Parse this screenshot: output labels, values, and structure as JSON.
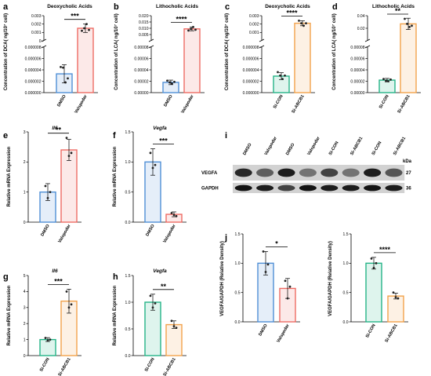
{
  "figure": {
    "background_color": "#ffffff"
  },
  "colors": {
    "dmso": "#4f8fd6",
    "valspodar": "#ee6b64",
    "si_con": "#25b487",
    "si_abcb1": "#f2a24b"
  },
  "chart_data": [
    {
      "id": "a",
      "type": "bar",
      "panel_label": "a",
      "title": "Deoxycholic Acids",
      "ylabel": "Concentration of DCA( ng/10⁷ cell)",
      "categories": [
        "DMSO",
        "Valspodar"
      ],
      "colors": [
        "#4f8fd6",
        "#ee6b64"
      ],
      "broken_axis": true,
      "lower_ylim": [
        0,
        8e-06
      ],
      "lower_ticks": [
        "0.000000",
        "0.000002",
        "0.000004",
        "0.000006",
        "0.000008"
      ],
      "upper_ylim": [
        0,
        0.003
      ],
      "upper_ticks": [
        "0",
        "0.001",
        "0.002",
        "0.003"
      ],
      "values": [
        3.3e-06,
        0.0015
      ],
      "errors": [
        1.6e-06,
        0.0005
      ],
      "points": [
        [
          4.5e-06,
          4.4e-06,
          1.8e-06,
          2.5e-06
        ],
        [
          0.0012,
          0.0015,
          0.002,
          0.0013
        ]
      ],
      "significance": "***"
    },
    {
      "id": "b",
      "type": "bar",
      "panel_label": "b",
      "title": "Lithocholic Acids",
      "ylabel": "Concentration of LCA( ng/10⁷ cell)",
      "categories": [
        "DMSO",
        "Valspodar"
      ],
      "colors": [
        "#4f8fd6",
        "#ee6b64"
      ],
      "broken_axis": true,
      "lower_ylim": [
        0,
        8e-05
      ],
      "lower_ticks": [
        "0.00000",
        "0.00002",
        "0.00004",
        "0.00006",
        "0.00008"
      ],
      "upper_ylim": [
        0,
        0.02
      ],
      "upper_ticks": [
        "0.005",
        "0.010",
        "0.015",
        "0.020"
      ],
      "values": [
        1.8e-05,
        0.0095
      ],
      "errors": [
        4e-06,
        0.0015
      ],
      "points": [
        [
          2.1e-05,
          1.8e-05,
          1.6e-05,
          1.9e-05
        ],
        [
          0.0082,
          0.0095,
          0.011,
          0.0088
        ]
      ],
      "significance": "****"
    },
    {
      "id": "c",
      "type": "bar",
      "panel_label": "c",
      "title": "Deoxycholic Acids",
      "ylabel": "Concentration of DCA( ng/10⁷ cell)",
      "categories": [
        "Si-CON",
        "Si-ABCB1"
      ],
      "colors": [
        "#25b487",
        "#f2a24b"
      ],
      "broken_axis": true,
      "lower_ylim": [
        0,
        8e-06
      ],
      "lower_ticks": [
        "0.000000",
        "0.000002",
        "0.000004",
        "0.000006",
        "0.000008"
      ],
      "upper_ylim": [
        0,
        0.003
      ],
      "upper_ticks": [
        "0.001",
        "0.002",
        "0.003"
      ],
      "values": [
        2.9e-06,
        0.0021
      ],
      "errors": [
        6e-07,
        0.0003
      ],
      "points": [
        [
          3.6e-06,
          3e-06,
          2.4e-06,
          3e-06
        ],
        [
          0.0024,
          0.0021,
          0.0018,
          0.0021
        ]
      ],
      "significance": "****"
    },
    {
      "id": "d",
      "type": "bar",
      "panel_label": "d",
      "title": "Lithocholic Acids",
      "ylabel": "Concentration of LCA( ng/10⁷ cell)",
      "categories": [
        "Si-CON",
        "Si-ABCB1"
      ],
      "colors": [
        "#25b487",
        "#f2a24b"
      ],
      "broken_axis": true,
      "lower_ylim": [
        0,
        8e-05
      ],
      "lower_ticks": [
        "0.00000",
        "0.00002",
        "0.00004",
        "0.00006",
        "0.00008"
      ],
      "upper_ylim": [
        0,
        0.04
      ],
      "upper_ticks": [
        "0.02",
        "0.04"
      ],
      "values": [
        2.2e-05,
        0.027
      ],
      "errors": [
        3e-06,
        0.009
      ],
      "points": [
        [
          2.4e-05,
          2.1e-05,
          2e-05,
          2.3e-05
        ],
        [
          0.035,
          0.027,
          0.022,
          0.024
        ]
      ],
      "significance": "**"
    },
    {
      "id": "e",
      "type": "bar",
      "panel_label": "e",
      "title": "Il6",
      "ylabel": "Relative mRNA Expression",
      "categories": [
        "DMSO",
        "Valspodar"
      ],
      "colors": [
        "#4f8fd6",
        "#ee6b64"
      ],
      "ylim": [
        0,
        3
      ],
      "yticks": [
        "0",
        "1",
        "2",
        "3"
      ],
      "values": [
        1.0,
        2.4
      ],
      "errors": [
        0.28,
        0.35
      ],
      "points": [
        [
          1.2,
          0.8,
          1.0
        ],
        [
          2.8,
          2.2,
          2.3
        ]
      ],
      "significance": "**"
    },
    {
      "id": "f",
      "type": "bar",
      "panel_label": "f",
      "title": "Vegfa",
      "ylabel": "Relative mRNA Expression",
      "categories": [
        "DMSO",
        "Valspodar"
      ],
      "colors": [
        "#4f8fd6",
        "#ee6b64"
      ],
      "ylim": [
        0,
        1.5
      ],
      "yticks": [
        "0.0",
        "0.5",
        "1.0",
        "1.5"
      ],
      "values": [
        1.0,
        0.13
      ],
      "errors": [
        0.22,
        0.04
      ],
      "points": [
        [
          1.15,
          0.9,
          0.95
        ],
        [
          0.15,
          0.12,
          0.1
        ]
      ],
      "significance": "***"
    },
    {
      "id": "g",
      "type": "bar",
      "panel_label": "g",
      "title": "Il6",
      "ylabel": "Relative mRNA Expression",
      "categories": [
        "Si-CON",
        "Si-ABCB1"
      ],
      "colors": [
        "#25b487",
        "#f2a24b"
      ],
      "ylim": [
        0,
        5
      ],
      "yticks": [
        "0",
        "1",
        "2",
        "3",
        "4",
        "5"
      ],
      "values": [
        1.0,
        3.4
      ],
      "errors": [
        0.12,
        0.75
      ],
      "points": [
        [
          1.1,
          0.95,
          1.0
        ],
        [
          4.0,
          3.0,
          3.2
        ]
      ],
      "significance": "***"
    },
    {
      "id": "h",
      "type": "bar",
      "panel_label": "h",
      "title": "Vegfa",
      "ylabel": "Relative mRNA Expression",
      "categories": [
        "Si-CON",
        "Si-ABCB1"
      ],
      "colors": [
        "#25b487",
        "#f2a24b"
      ],
      "ylim": [
        0,
        1.5
      ],
      "yticks": [
        "0.0",
        "0.5",
        "1.0",
        "1.5"
      ],
      "values": [
        1.0,
        0.58
      ],
      "errors": [
        0.15,
        0.07
      ],
      "points": [
        [
          1.12,
          0.9,
          0.98
        ],
        [
          0.65,
          0.55,
          0.52
        ]
      ],
      "significance": "**"
    },
    {
      "id": "j1",
      "type": "bar",
      "panel_label": "j",
      "title": "",
      "ylabel": "VEGFA/GAPDH (Relative Density)",
      "categories": [
        "DMSO",
        "Valspodar"
      ],
      "colors": [
        "#4f8fd6",
        "#ee6b64"
      ],
      "ylim": [
        0,
        1.5
      ],
      "yticks": [
        "0.0",
        "0.5",
        "1.0",
        "1.5"
      ],
      "values": [
        1.0,
        0.57
      ],
      "errors": [
        0.2,
        0.17
      ],
      "points": [
        [
          1.2,
          0.85,
          0.98
        ],
        [
          0.7,
          0.4,
          0.6
        ]
      ],
      "significance": "*"
    },
    {
      "id": "j2",
      "type": "bar",
      "panel_label": "",
      "title": "",
      "ylabel": "VEGFA/GAPDH (Relative Density)",
      "categories": [
        "Si-CON",
        "Si-ABCB1"
      ],
      "colors": [
        "#25b487",
        "#f2a24b"
      ],
      "ylim": [
        0,
        1.5
      ],
      "yticks": [
        "0.0",
        "0.5",
        "1.0",
        "1.5"
      ],
      "values": [
        1.0,
        0.44
      ],
      "errors": [
        0.1,
        0.05
      ],
      "points": [
        [
          1.08,
          0.92,
          1.0
        ],
        [
          0.5,
          0.42,
          0.4
        ]
      ],
      "significance": "****"
    }
  ],
  "western_blot": {
    "panel_label": "i",
    "lanes": [
      "DMSO",
      "Valspodar",
      "DMSO",
      "Valspodar",
      "Si-CON",
      "Si-ABCB1",
      "Si-CON",
      "Si-ABCB1"
    ],
    "kda_label": "kDa",
    "bands": [
      {
        "name": "VEGFA",
        "kda": "27",
        "intensities": [
          0.85,
          0.55,
          0.9,
          0.45,
          0.7,
          0.45,
          0.9,
          0.6
        ]
      },
      {
        "name": "GAPDH",
        "kda": "36",
        "intensities": [
          0.95,
          0.9,
          0.7,
          0.95,
          0.9,
          0.9,
          0.95,
          0.9
        ]
      }
    ]
  }
}
